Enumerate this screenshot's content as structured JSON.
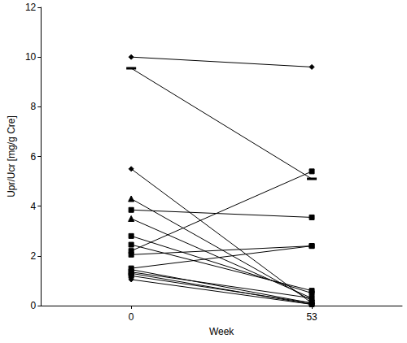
{
  "chart_data": {
    "type": "line",
    "x_label": "Week",
    "y_label": "Upr/Ucr [mg/g Cre]",
    "categories": [
      "0",
      "53"
    ],
    "ylim": [
      0,
      12
    ],
    "yticks": [
      0,
      2,
      4,
      6,
      8,
      10,
      12
    ],
    "grid": false,
    "color": "#000000",
    "series": [
      {
        "values": [
          10.0,
          9.6
        ],
        "marker": "diamond"
      },
      {
        "values": [
          9.55,
          5.1
        ],
        "marker": "dash"
      },
      {
        "values": [
          5.5,
          0.1
        ],
        "marker": "diamond"
      },
      {
        "values": [
          4.3,
          0.2
        ],
        "marker": "triangle"
      },
      {
        "values": [
          3.85,
          3.55
        ],
        "marker": "square"
      },
      {
        "values": [
          3.5,
          0.3
        ],
        "marker": "triangle"
      },
      {
        "values": [
          2.8,
          0.5
        ],
        "marker": "square"
      },
      {
        "values": [
          2.45,
          0.6
        ],
        "marker": "square"
      },
      {
        "values": [
          2.2,
          5.4
        ],
        "marker": "square"
      },
      {
        "values": [
          2.05,
          2.4
        ],
        "marker": "square"
      },
      {
        "values": [
          1.5,
          2.4
        ],
        "marker": "square"
      },
      {
        "values": [
          1.45,
          0.1
        ],
        "marker": "diamond"
      },
      {
        "values": [
          1.35,
          0.3
        ],
        "marker": "square"
      },
      {
        "values": [
          1.3,
          0.05
        ],
        "marker": "square"
      },
      {
        "values": [
          1.2,
          0.1
        ],
        "marker": "square"
      },
      {
        "values": [
          1.05,
          0.05
        ],
        "marker": "diamond"
      }
    ]
  }
}
